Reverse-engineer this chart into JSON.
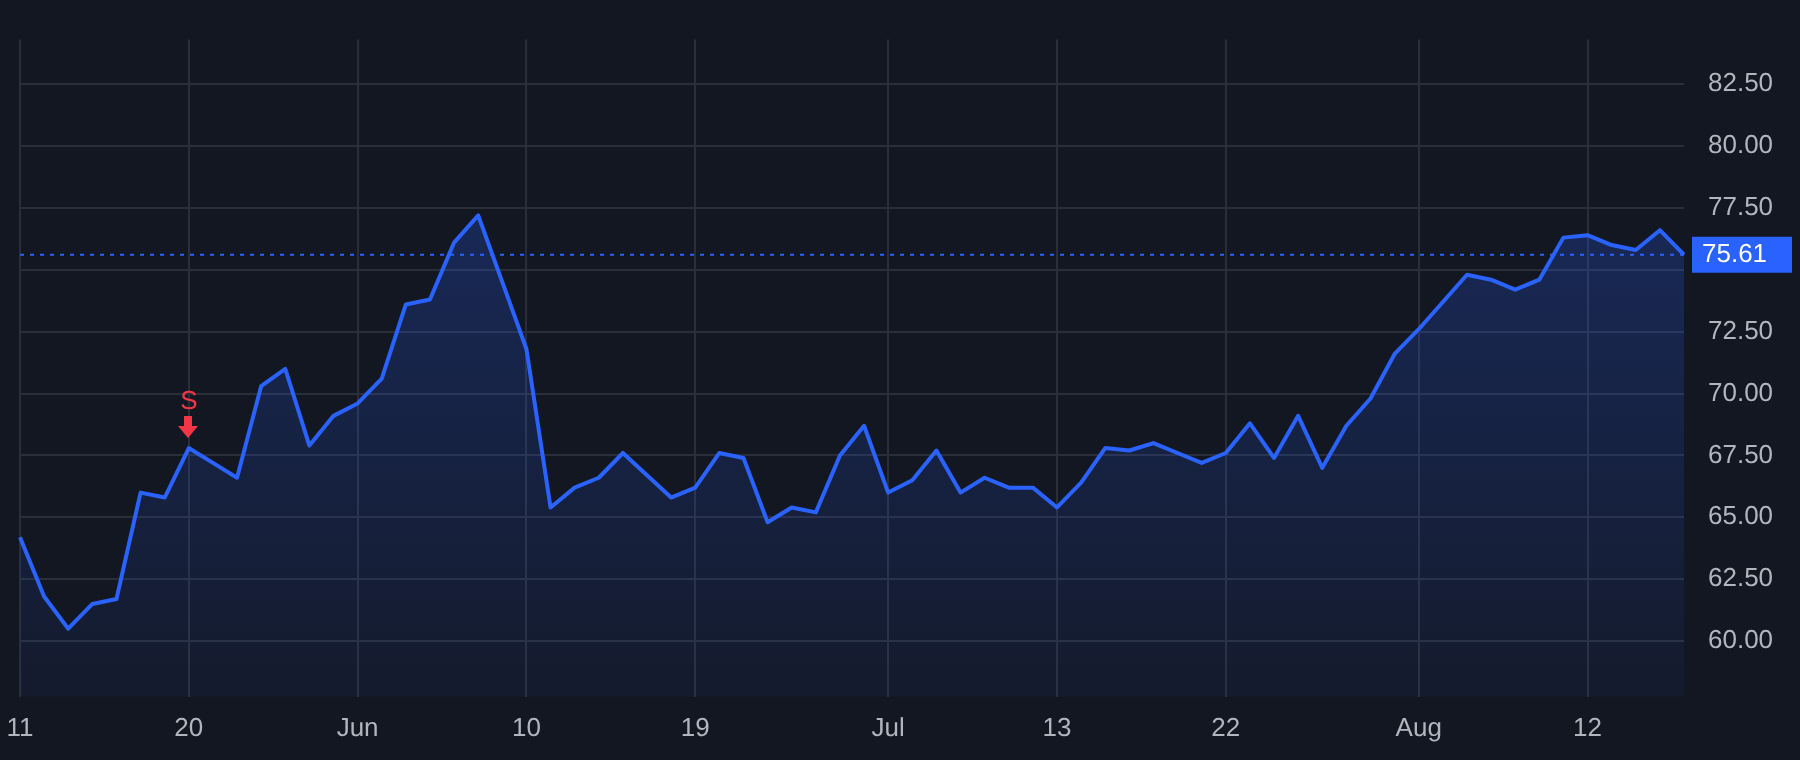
{
  "chart_data": {
    "type": "area",
    "categories": [
      "11",
      null,
      null,
      null,
      null,
      null,
      null,
      "20",
      null,
      null,
      null,
      null,
      null,
      null,
      "Jun",
      null,
      null,
      null,
      null,
      null,
      null,
      "10",
      null,
      null,
      null,
      null,
      null,
      null,
      "19",
      null,
      null,
      null,
      null,
      null,
      null,
      null,
      "Jul",
      null,
      null,
      null,
      null,
      null,
      null,
      "13",
      null,
      null,
      null,
      null,
      null,
      null,
      "22",
      null,
      null,
      null,
      null,
      null,
      null,
      null,
      "Aug",
      null,
      null,
      null,
      null,
      null,
      null,
      "12",
      null,
      null,
      null,
      null
    ],
    "series": [
      {
        "color": "#2962ff",
        "values": [
          64.2,
          61.8,
          60.5,
          61.5,
          61.7,
          66.0,
          65.8,
          67.8,
          67.2,
          66.6,
          70.3,
          71.0,
          67.9,
          69.1,
          69.6,
          70.6,
          73.6,
          73.8,
          76.1,
          77.2,
          74.5,
          71.8,
          65.4,
          66.2,
          66.6,
          67.6,
          66.7,
          65.8,
          66.2,
          67.6,
          67.4,
          64.8,
          65.4,
          65.2,
          67.5,
          68.7,
          66.0,
          66.5,
          67.7,
          66.0,
          66.6,
          66.2,
          66.2,
          65.4,
          66.4,
          67.8,
          67.7,
          68.0,
          67.6,
          67.2,
          67.6,
          68.8,
          67.4,
          69.1,
          67.0,
          68.7,
          69.8,
          71.6,
          72.6,
          73.7,
          74.8,
          74.6,
          74.2,
          74.6,
          76.3,
          76.4,
          76.0,
          75.8,
          76.6,
          75.61
        ]
      }
    ],
    "ylim": [
      57.75,
      84.3
    ],
    "yticks": [
      {
        "value": 60,
        "label": "60.00"
      },
      {
        "value": 62.5,
        "label": "62.50"
      },
      {
        "value": 65,
        "label": "65.00"
      },
      {
        "value": 67.5,
        "label": "67.50"
      },
      {
        "value": 70,
        "label": "70.00"
      },
      {
        "value": 72.5,
        "label": "72.50"
      },
      {
        "value": 75,
        "label": null
      },
      {
        "value": 77.5,
        "label": "77.50"
      },
      {
        "value": 80,
        "label": "80.00"
      },
      {
        "value": 82.5,
        "label": "82.50"
      }
    ],
    "grid": true,
    "legend": false,
    "line_style": "solid",
    "ref_lines": [
      {
        "axis": "y",
        "value": 75.61,
        "label": "75.61",
        "color": "#2962ff",
        "line_style": "dotted"
      }
    ],
    "annotations": [
      {
        "text": "S",
        "x": "20",
        "y": 67.85
      }
    ]
  }
}
